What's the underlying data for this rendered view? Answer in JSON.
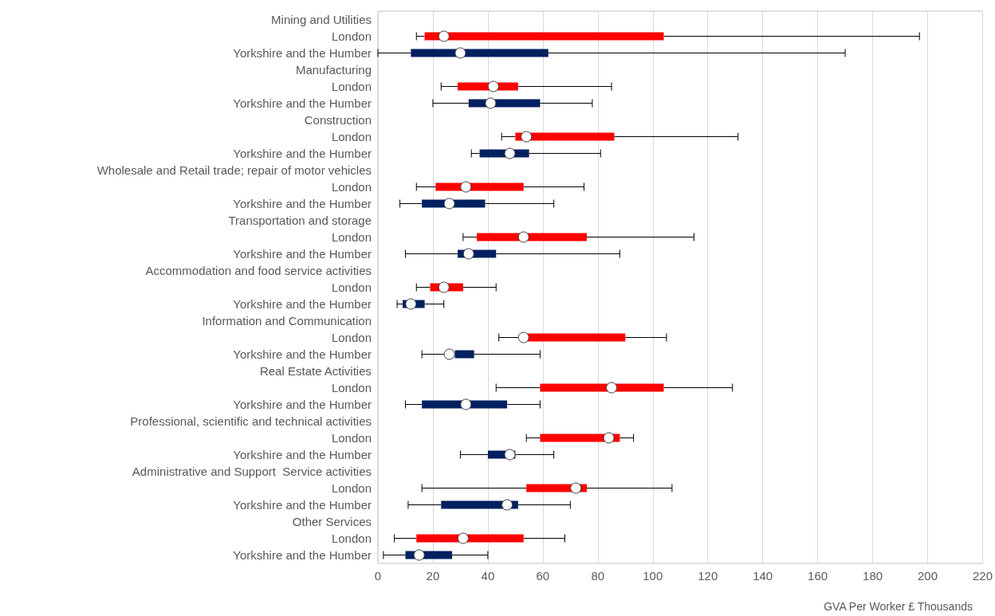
{
  "chart_data": {
    "type": "box",
    "orientation": "horizontal",
    "xlabel": "GVA Per Worker £ Thousands",
    "categories": [
      "Mining and Utilities",
      "London",
      "Yorkshire and the Humber",
      "Manufacturing",
      "London",
      "Yorkshire and the Humber",
      "Construction",
      "London",
      "Yorkshire and the Humber",
      "Wholesale and Retail trade; repair of motor vehicles",
      "London",
      "Yorkshire and the Humber",
      "Transportation and storage",
      "London",
      "Yorkshire and the Humber",
      "Accommodation and food service activities",
      "London",
      "Yorkshire and the Humber",
      "Information and Communication",
      "London",
      "Yorkshire and the Humber",
      "Real Estate Activities",
      "London",
      "Yorkshire and the Humber",
      "Professional, scientific and technical activities",
      "London",
      "Yorkshire and the Humber",
      "Administrative and Support  Service activities",
      "London",
      "Yorkshire and the Humber",
      "Other Services",
      "London",
      "Yorkshire and the Humber"
    ],
    "boxes": [
      null,
      {
        "low": 14,
        "q1": 17,
        "median": 24,
        "q3": 104,
        "high": 197
      },
      {
        "low": 0,
        "q1": 12,
        "median": 30,
        "q3": 62,
        "high": 170
      },
      null,
      {
        "low": 23,
        "q1": 29,
        "median": 42,
        "q3": 51,
        "high": 85
      },
      {
        "low": 20,
        "q1": 33,
        "median": 41,
        "q3": 59,
        "high": 78
      },
      null,
      {
        "low": 45,
        "q1": 50,
        "median": 54,
        "q3": 86,
        "high": 131
      },
      {
        "low": 34,
        "q1": 37,
        "median": 48,
        "q3": 55,
        "high": 81
      },
      null,
      {
        "low": 14,
        "q1": 21,
        "median": 32,
        "q3": 53,
        "high": 75
      },
      {
        "low": 8,
        "q1": 16,
        "median": 26,
        "q3": 39,
        "high": 64
      },
      null,
      {
        "low": 31,
        "q1": 36,
        "median": 53,
        "q3": 76,
        "high": 115
      },
      {
        "low": 10,
        "q1": 29,
        "median": 33,
        "q3": 43,
        "high": 88
      },
      null,
      {
        "low": 14,
        "q1": 19,
        "median": 24,
        "q3": 31,
        "high": 43
      },
      {
        "low": 7,
        "q1": 9,
        "median": 12,
        "q3": 17,
        "high": 24
      },
      null,
      {
        "low": 44,
        "q1": 54,
        "median": 53,
        "q3": 90,
        "high": 105
      },
      {
        "low": 16,
        "q1": 28,
        "median": 26,
        "q3": 35,
        "high": 59
      },
      null,
      {
        "low": 43,
        "q1": 59,
        "median": 85,
        "q3": 104,
        "high": 129
      },
      {
        "low": 10,
        "q1": 16,
        "median": 32,
        "q3": 47,
        "high": 59
      },
      null,
      {
        "low": 54,
        "q1": 59,
        "median": 84,
        "q3": 88,
        "high": 93
      },
      {
        "low": 30,
        "q1": 40,
        "median": 48,
        "q3": 50,
        "high": 64
      },
      null,
      {
        "low": 16,
        "q1": 54,
        "median": 72,
        "q3": 76,
        "high": 107
      },
      {
        "low": 11,
        "q1": 23,
        "median": 47,
        "q3": 51,
        "high": 70
      },
      null,
      {
        "low": 6,
        "q1": 14,
        "median": 31,
        "q3": 53,
        "high": 68
      },
      {
        "low": 2,
        "q1": 10,
        "median": 15,
        "q3": 27,
        "high": 40
      }
    ],
    "colors": [
      null,
      "#ff0000",
      "#002060",
      null,
      "#ff0000",
      "#002060",
      null,
      "#ff0000",
      "#002060",
      null,
      "#ff0000",
      "#002060",
      null,
      "#ff0000",
      "#002060",
      null,
      "#ff0000",
      "#002060",
      null,
      "#ff0000",
      "#002060",
      null,
      "#ff0000",
      "#002060",
      null,
      "#ff0000",
      "#002060",
      null,
      "#ff0000",
      "#002060",
      null,
      "#ff0000",
      "#002060"
    ],
    "marker": "circle",
    "xlim": [
      0,
      220
    ],
    "xticks": [
      0,
      20,
      40,
      60,
      80,
      100,
      120,
      140,
      160,
      180,
      200,
      220
    ],
    "grid": "x"
  }
}
